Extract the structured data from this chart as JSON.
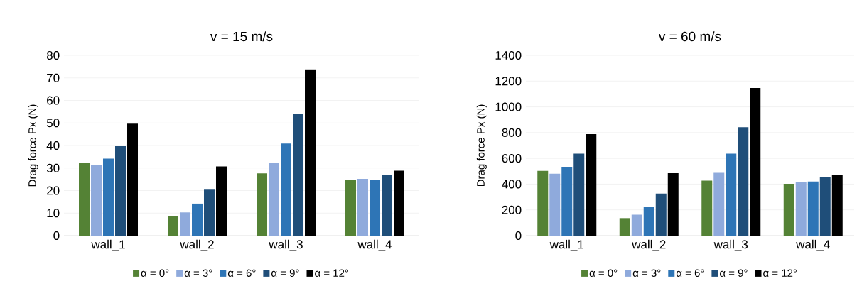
{
  "chart_data": [
    {
      "type": "bar",
      "title": "v = 15 m/s",
      "ylabel": "Drag force Px (N)",
      "categories": [
        "wall_1",
        "wall_2",
        "wall_3",
        "wall_4"
      ],
      "ylim": [
        0,
        80
      ],
      "yticks": [
        0,
        10,
        20,
        30,
        40,
        50,
        60,
        70,
        80
      ],
      "grid": "y",
      "legend": "bottom",
      "series": [
        {
          "name": "α = 0°",
          "color": "#548235",
          "values": [
            32.1,
            8.8,
            27.6,
            24.7
          ]
        },
        {
          "name": "α = 3°",
          "color": "#8faadc",
          "values": [
            31.4,
            10.3,
            32.1,
            25.2
          ]
        },
        {
          "name": "α = 6°",
          "color": "#2e75b6",
          "values": [
            34.2,
            14.2,
            40.9,
            24.9
          ]
        },
        {
          "name": "α = 9°",
          "color": "#1f4e79",
          "values": [
            40,
            20.7,
            54.1,
            26.9
          ]
        },
        {
          "name": "α = 12°",
          "color": "#000000",
          "values": [
            49.7,
            30.7,
            73.8,
            28.8
          ]
        }
      ]
    },
    {
      "type": "bar",
      "title": "v = 60 m/s",
      "ylabel": "Drag force Px (N)",
      "categories": [
        "wall_1",
        "wall_2",
        "wall_3",
        "wall_4"
      ],
      "ylim": [
        0,
        1400
      ],
      "yticks": [
        0,
        200,
        400,
        600,
        800,
        1000,
        1200,
        1400
      ],
      "grid": "y",
      "legend": "bottom",
      "series": [
        {
          "name": "α = 0°",
          "color": "#548235",
          "values": [
            503,
            136,
            427,
            402
          ]
        },
        {
          "name": "α = 3°",
          "color": "#8faadc",
          "values": [
            481,
            162,
            488,
            415
          ]
        },
        {
          "name": "α = 6°",
          "color": "#2e75b6",
          "values": [
            535,
            223,
            636,
            420
          ]
        },
        {
          "name": "α = 9°",
          "color": "#1f4e79",
          "values": [
            636,
            327,
            842,
            454
          ]
        },
        {
          "name": "α = 12°",
          "color": "#000000",
          "values": [
            788,
            485,
            1147,
            474
          ]
        }
      ]
    }
  ]
}
